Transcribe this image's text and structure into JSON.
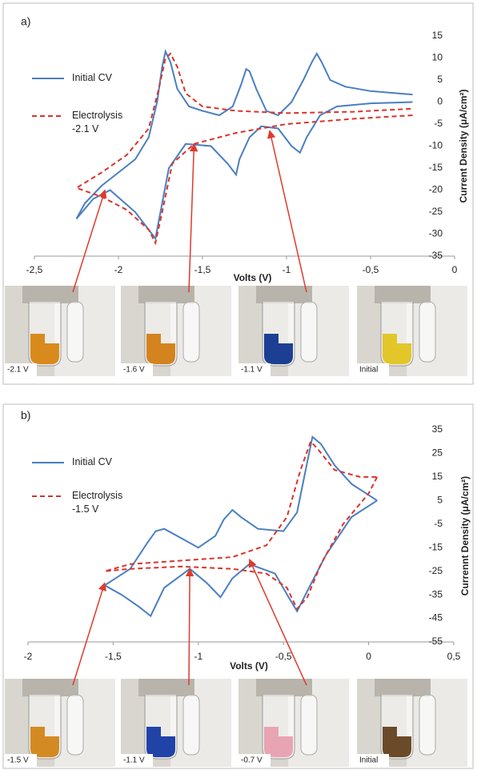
{
  "chart_data": [
    {
      "type": "line",
      "panel_label": "a)",
      "x_label": "Volts (V)",
      "y_label": "Current Density (μA/cm²)",
      "xlim": [
        -2.5,
        0
      ],
      "xticks": [
        {
          "value": -2.5,
          "label": "-2,5"
        },
        -2,
        {
          "value": -1.5,
          "label": "-1,5"
        },
        -1,
        {
          "value": -0.5,
          "label": "-0,5"
        },
        0
      ],
      "ylim": [
        -35,
        15
      ],
      "yticks": [
        -35,
        -30,
        -25,
        -20,
        -15,
        -10,
        -5,
        0,
        5,
        10,
        15
      ],
      "series": [
        {
          "name": "Initial CV",
          "color": "#4a7fc1",
          "linestyle": "solid",
          "x": [
            -0.25,
            -0.5,
            -0.7,
            -0.8,
            -0.88,
            -0.92,
            -0.97,
            -1.05,
            -1.15,
            -1.22,
            -1.28,
            -1.3,
            -1.35,
            -1.45,
            -1.6,
            -1.7,
            -1.75,
            -1.78,
            -1.82,
            -1.9,
            -2.05,
            -2.15,
            -2.25,
            -2.2,
            -2.1,
            -2.0,
            -1.9,
            -1.82,
            -1.77,
            -1.74,
            -1.72,
            -1.69,
            -1.65,
            -1.58,
            -1.5,
            -1.4,
            -1.32,
            -1.27,
            -1.24,
            -1.22,
            -1.18,
            -1.12,
            -1.05,
            -0.97,
            -0.9,
            -0.85,
            -0.82,
            -0.79,
            -0.74,
            -0.65,
            -0.5,
            -0.25
          ],
          "values": [
            0,
            -0.3,
            -1,
            -3,
            -8,
            -11.5,
            -10,
            -6,
            -5.5,
            -8,
            -13,
            -16.5,
            -14,
            -10,
            -9.5,
            -15,
            -25,
            -31,
            -29,
            -25,
            -20,
            -22,
            -26.5,
            -23,
            -19,
            -16,
            -13,
            -8,
            0,
            8,
            11.5,
            9,
            3,
            -1,
            -2,
            -3,
            -1,
            4,
            7.5,
            7,
            3,
            -2,
            -3,
            0,
            5,
            9,
            11,
            9,
            5,
            3.5,
            2.5,
            1.7
          ]
        },
        {
          "name": "Electrolysis -2.1 V",
          "color": "#d9342b",
          "linestyle": "dashed",
          "x": [
            -0.25,
            -0.6,
            -1.0,
            -1.3,
            -1.55,
            -1.68,
            -1.74,
            -1.78,
            -1.82,
            -1.95,
            -2.1,
            -2.25,
            -2.1,
            -1.95,
            -1.82,
            -1.76,
            -1.72,
            -1.69,
            -1.65,
            -1.6,
            -1.5,
            -1.3,
            -1.0,
            -0.6,
            -0.25
          ],
          "values": [
            -3,
            -3.8,
            -5,
            -7,
            -9.5,
            -14,
            -25,
            -32,
            -29,
            -24.5,
            -21.5,
            -19.5,
            -16,
            -12,
            -6,
            3,
            10,
            11,
            8,
            2,
            -1,
            -2,
            -2.5,
            -2.2,
            -1.5
          ]
        }
      ],
      "photos": [
        {
          "label": "-2.1 V",
          "color": "#d98a1c",
          "x": -2.08,
          "y": -20
        },
        {
          "label": "-1.6 V",
          "color": "#d4841f",
          "x": -1.55,
          "y": -9.5
        },
        {
          "label": "-1.1 V",
          "color": "#1d3f93",
          "x": -1.1,
          "y": -6.5
        },
        {
          "label": "Initial",
          "color": "#e2c62a"
        }
      ]
    },
    {
      "type": "line",
      "panel_label": "b)",
      "x_label": "Volts (V)",
      "y_label": "Currennt Density (μA/cm²)",
      "xlim": [
        -2,
        0.5
      ],
      "xticks": [
        -2,
        {
          "value": -1.5,
          "label": "-1,5"
        },
        -1,
        {
          "value": -0.5,
          "label": "-0,5"
        },
        0,
        {
          "value": 0.5,
          "label": "0,5"
        }
      ],
      "ylim": [
        -55,
        35
      ],
      "yticks": [
        -55,
        -45,
        -35,
        -25,
        -15,
        -5,
        5,
        15,
        25,
        35
      ],
      "series": [
        {
          "name": "Initial CV",
          "color": "#4a7fc1",
          "linestyle": "solid",
          "x": [
            0.05,
            -0.1,
            -0.25,
            -0.35,
            -0.42,
            -0.47,
            -0.55,
            -0.7,
            -0.8,
            -0.87,
            -0.95,
            -1.05,
            -1.2,
            -1.28,
            -1.35,
            -1.45,
            -1.55,
            -1.4,
            -1.3,
            -1.25,
            -1.2,
            -1.1,
            -1.0,
            -0.9,
            -0.85,
            -0.8,
            -0.75,
            -0.65,
            -0.5,
            -0.42,
            -0.37,
            -0.33,
            -0.28,
            -0.2,
            -0.1,
            0.05
          ],
          "values": [
            5,
            -2,
            -18,
            -32,
            -42,
            -36,
            -26,
            -22,
            -28,
            -36,
            -30,
            -24,
            -32,
            -44,
            -40,
            -35,
            -31,
            -24,
            -13,
            -8,
            -7,
            -11,
            -15,
            -10,
            -3,
            1,
            -2,
            -7,
            -8,
            0,
            18,
            32,
            29,
            20,
            12,
            5
          ]
        },
        {
          "name": "Electrolysis -1.5 V",
          "color": "#d9342b",
          "linestyle": "dashed",
          "x": [
            0.05,
            0,
            -0.15,
            -0.28,
            -0.36,
            -0.42,
            -0.48,
            -0.6,
            -0.8,
            -1.1,
            -1.4,
            -1.55,
            -1.4,
            -1.1,
            -0.8,
            -0.6,
            -0.48,
            -0.4,
            -0.34,
            -0.3,
            -0.2,
            -0.05,
            0.05
          ],
          "values": [
            15,
            8,
            -5,
            -22,
            -36,
            -41,
            -32,
            -26,
            -24,
            -23,
            -24,
            -25,
            -22,
            -20.5,
            -19,
            -14,
            -2,
            18,
            30,
            27,
            18,
            15,
            15
          ]
        }
      ],
      "photos": [
        {
          "label": "-1.5 V",
          "color": "#d48a22",
          "x": -1.55,
          "y": -30
        },
        {
          "label": "-1.1 V",
          "color": "#2143a8",
          "x": -1.05,
          "y": -24
        },
        {
          "label": "-0.7 V",
          "color": "#e8a4b2",
          "x": -0.7,
          "y": -20
        },
        {
          "label": "Initial",
          "color": "#6b4a2a"
        }
      ]
    }
  ]
}
